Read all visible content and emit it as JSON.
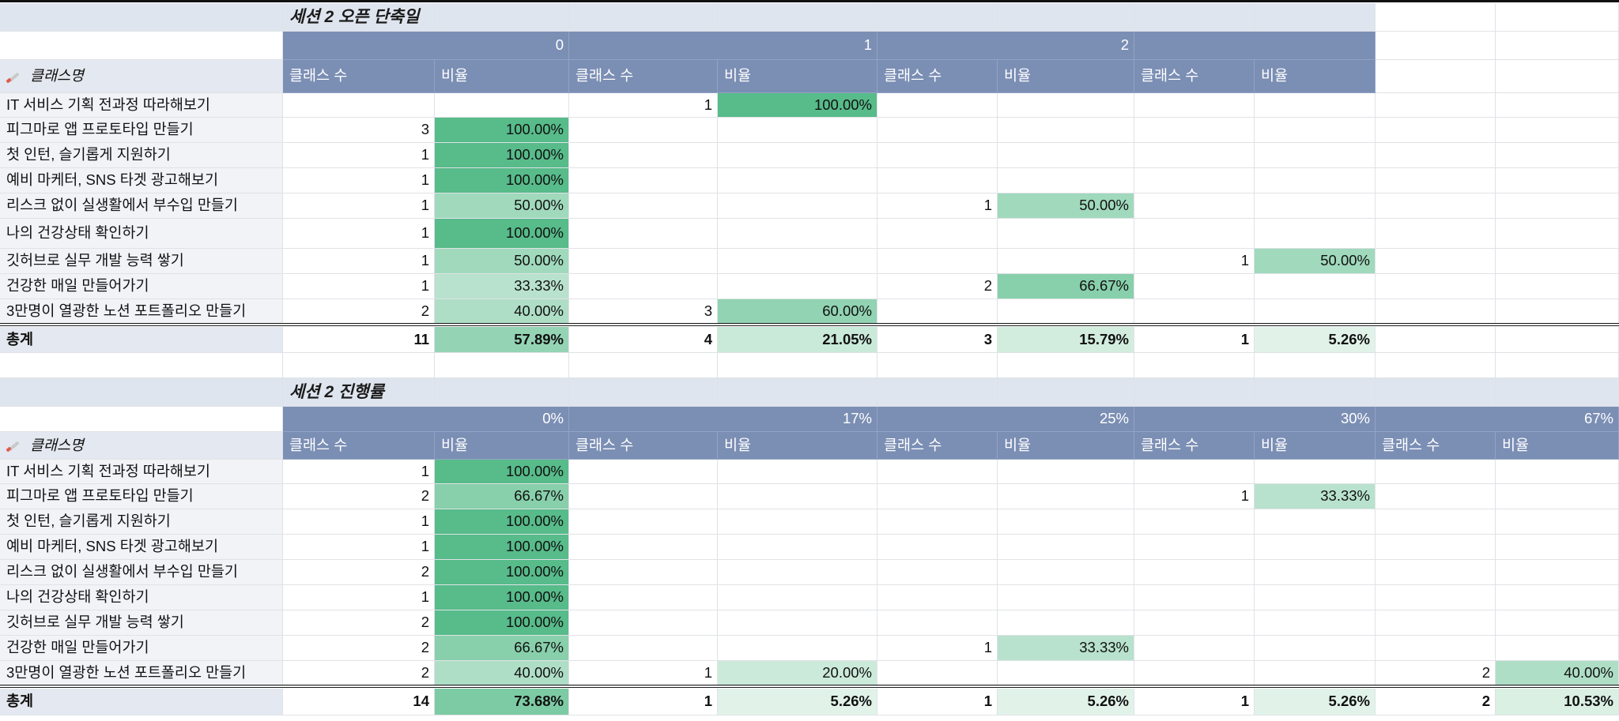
{
  "colors": {
    "header_bg": "#7b8eb4",
    "title_bg": "#dfe5ef",
    "label_bg": "#f1f3f7",
    "heat_low": "#e9f6ee",
    "heat_high": "#57bb8a"
  },
  "table1": {
    "title": "세션 2 오픈 단축일",
    "groups": [
      "0",
      "1",
      "2",
      ""
    ],
    "sub": [
      "클래스 수",
      "비율"
    ],
    "label_header": "클래스명",
    "rows": [
      {
        "label": "IT 서비스 기획 전과정 따라해보기",
        "cells": [
          [
            "",
            ""
          ],
          [
            "1",
            "100.00%"
          ],
          [
            "",
            ""
          ],
          [
            "",
            ""
          ]
        ],
        "levels": [
          null,
          1.0,
          null,
          null
        ]
      },
      {
        "label": "피그마로 앱 프로토타입 만들기",
        "cells": [
          [
            "3",
            "100.00%"
          ],
          [
            "",
            ""
          ],
          [
            "",
            ""
          ],
          [
            "",
            ""
          ]
        ],
        "levels": [
          1.0,
          null,
          null,
          null
        ]
      },
      {
        "label": "첫 인턴, 슬기롭게 지원하기",
        "cells": [
          [
            "1",
            "100.00%"
          ],
          [
            "",
            ""
          ],
          [
            "",
            ""
          ],
          [
            "",
            ""
          ]
        ],
        "levels": [
          1.0,
          null,
          null,
          null
        ]
      },
      {
        "label": "예비 마케터, SNS 타겟 광고해보기",
        "cells": [
          [
            "1",
            "100.00%"
          ],
          [
            "",
            ""
          ],
          [
            "",
            ""
          ],
          [
            "",
            ""
          ]
        ],
        "levels": [
          1.0,
          null,
          null,
          null
        ]
      },
      {
        "label": "리스크 없이 실생활에서 부수입 만들기",
        "cells": [
          [
            "1",
            "50.00%"
          ],
          [
            "",
            ""
          ],
          [
            "1",
            "50.00%"
          ],
          [
            "",
            ""
          ]
        ],
        "levels": [
          0.5,
          null,
          0.5,
          null
        ]
      },
      {
        "label": "나의 건강상태 확인하기",
        "cells": [
          [
            "1",
            "100.00%"
          ],
          [
            "",
            ""
          ],
          [
            "",
            ""
          ],
          [
            "",
            ""
          ]
        ],
        "levels": [
          1.0,
          null,
          null,
          null
        ]
      },
      {
        "label": "깃허브로 실무 개발 능력 쌓기",
        "cells": [
          [
            "1",
            "50.00%"
          ],
          [
            "",
            ""
          ],
          [
            "",
            ""
          ],
          [
            "1",
            "50.00%"
          ]
        ],
        "levels": [
          0.5,
          null,
          null,
          0.5
        ]
      },
      {
        "label": "건강한 매일 만들어가기",
        "cells": [
          [
            "1",
            "33.33%"
          ],
          [
            "",
            ""
          ],
          [
            "2",
            "66.67%"
          ],
          [
            "",
            ""
          ]
        ],
        "levels": [
          0.3333,
          null,
          0.6667,
          null
        ]
      },
      {
        "label": "3만명이 열광한 노션 포트폴리오 만들기",
        "cells": [
          [
            "2",
            "40.00%"
          ],
          [
            "3",
            "60.00%"
          ],
          [
            "",
            ""
          ],
          [
            "",
            ""
          ]
        ],
        "levels": [
          0.4,
          0.6,
          null,
          null
        ]
      }
    ],
    "total": {
      "label": "총계",
      "cells": [
        [
          "11",
          "57.89%"
        ],
        [
          "4",
          "21.05%"
        ],
        [
          "3",
          "15.79%"
        ],
        [
          "1",
          "5.26%"
        ]
      ],
      "levels": [
        0.5789,
        0.2105,
        0.1579,
        0.0526
      ]
    }
  },
  "table2": {
    "title": "세션 2 진행률",
    "groups": [
      "0%",
      "17%",
      "25%",
      "30%",
      "67%"
    ],
    "sub": [
      "클래스 수",
      "비율"
    ],
    "label_header": "클래스명",
    "rows": [
      {
        "label": "IT 서비스 기획 전과정 따라해보기",
        "cells": [
          [
            "1",
            "100.00%"
          ],
          [
            "",
            ""
          ],
          [
            "",
            ""
          ],
          [
            "",
            ""
          ],
          [
            "",
            ""
          ]
        ],
        "levels": [
          1.0,
          null,
          null,
          null,
          null
        ]
      },
      {
        "label": "피그마로 앱 프로토타입 만들기",
        "cells": [
          [
            "2",
            "66.67%"
          ],
          [
            "",
            ""
          ],
          [
            "",
            ""
          ],
          [
            "1",
            "33.33%"
          ],
          [
            "",
            ""
          ]
        ],
        "levels": [
          0.6667,
          null,
          null,
          0.3333,
          null
        ]
      },
      {
        "label": "첫 인턴, 슬기롭게 지원하기",
        "cells": [
          [
            "1",
            "100.00%"
          ],
          [
            "",
            ""
          ],
          [
            "",
            ""
          ],
          [
            "",
            ""
          ],
          [
            "",
            ""
          ]
        ],
        "levels": [
          1.0,
          null,
          null,
          null,
          null
        ]
      },
      {
        "label": "예비 마케터, SNS 타겟 광고해보기",
        "cells": [
          [
            "1",
            "100.00%"
          ],
          [
            "",
            ""
          ],
          [
            "",
            ""
          ],
          [
            "",
            ""
          ],
          [
            "",
            ""
          ]
        ],
        "levels": [
          1.0,
          null,
          null,
          null,
          null
        ]
      },
      {
        "label": "리스크 없이 실생활에서 부수입 만들기",
        "cells": [
          [
            "2",
            "100.00%"
          ],
          [
            "",
            ""
          ],
          [
            "",
            ""
          ],
          [
            "",
            ""
          ],
          [
            "",
            ""
          ]
        ],
        "levels": [
          1.0,
          null,
          null,
          null,
          null
        ]
      },
      {
        "label": "나의 건강상태 확인하기",
        "cells": [
          [
            "1",
            "100.00%"
          ],
          [
            "",
            ""
          ],
          [
            "",
            ""
          ],
          [
            "",
            ""
          ],
          [
            "",
            ""
          ]
        ],
        "levels": [
          1.0,
          null,
          null,
          null,
          null
        ]
      },
      {
        "label": "깃허브로 실무 개발 능력 쌓기",
        "cells": [
          [
            "2",
            "100.00%"
          ],
          [
            "",
            ""
          ],
          [
            "",
            ""
          ],
          [
            "",
            ""
          ],
          [
            "",
            ""
          ]
        ],
        "levels": [
          1.0,
          null,
          null,
          null,
          null
        ]
      },
      {
        "label": "건강한 매일 만들어가기",
        "cells": [
          [
            "2",
            "66.67%"
          ],
          [
            "",
            ""
          ],
          [
            "1",
            "33.33%"
          ],
          [
            "",
            ""
          ],
          [
            "",
            ""
          ]
        ],
        "levels": [
          0.6667,
          null,
          0.3333,
          null,
          null
        ]
      },
      {
        "label": "3만명이 열광한 노션 포트폴리오 만들기",
        "cells": [
          [
            "2",
            "40.00%"
          ],
          [
            "1",
            "20.00%"
          ],
          [
            "",
            ""
          ],
          [
            "",
            ""
          ],
          [
            "2",
            "40.00%"
          ]
        ],
        "levels": [
          0.4,
          0.2,
          null,
          null,
          0.4
        ]
      }
    ],
    "total": {
      "label": "총계",
      "cells": [
        [
          "14",
          "73.68%"
        ],
        [
          "1",
          "5.26%"
        ],
        [
          "1",
          "5.26%"
        ],
        [
          "1",
          "5.26%"
        ],
        [
          "2",
          "10.53%"
        ]
      ],
      "levels": [
        0.7368,
        0.0526,
        0.0526,
        0.0526,
        0.1053
      ]
    }
  }
}
